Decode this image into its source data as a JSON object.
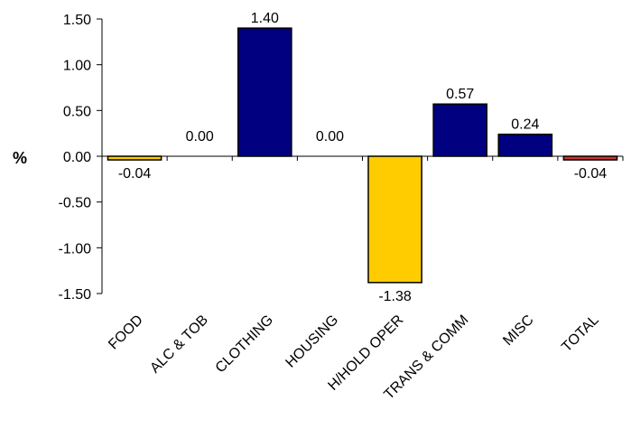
{
  "chart_data": {
    "type": "bar",
    "title": "",
    "xlabel": "",
    "ylabel": "%",
    "ylim": [
      -1.5,
      1.5
    ],
    "yticks": [
      1.5,
      1.0,
      0.5,
      0.0,
      -0.5,
      -1.0,
      -1.5
    ],
    "ytick_labels": [
      "1.50",
      "1.00",
      "0.50",
      "0.00",
      "-0.50",
      "-1.00",
      "-1.50"
    ],
    "grid": false,
    "legend": "none",
    "categories": [
      "FOOD",
      "ALC & TOB",
      "CLOTHING",
      "HOUSING",
      "H/HOLD OPER",
      "TRANS & COMM",
      "MISC",
      "TOTAL"
    ],
    "values": [
      -0.04,
      0.0,
      1.4,
      0.0,
      -1.38,
      0.57,
      0.24,
      -0.04
    ],
    "value_labels": [
      "-0.04",
      "0.00",
      "1.40",
      "0.00",
      "-1.38",
      "0.57",
      "0.24",
      "-0.04"
    ],
    "colors": [
      "#FFCC00",
      "#FFCC00",
      "#000080",
      "#000080",
      "#FFCC00",
      "#000080",
      "#000080",
      "#CC3333"
    ]
  }
}
